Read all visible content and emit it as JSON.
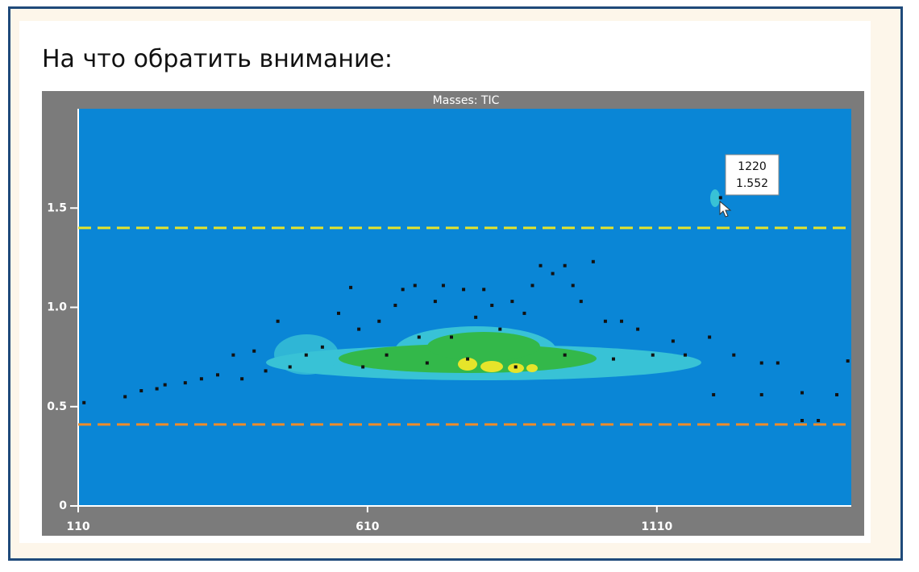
{
  "heading": "На что обратить внимание:",
  "chart_data": {
    "type": "scatter",
    "title": "Masses: TIC",
    "xlim": [
      110,
      1446
    ],
    "ylim": [
      0,
      2
    ],
    "xticks": [
      110,
      610,
      1110
    ],
    "yticks": [
      0,
      0.5,
      {
        "value": 1,
        "label": "1.0"
      },
      1.5
    ],
    "reference_lines": [
      {
        "value": 1.4,
        "color": "#e4e42c"
      },
      {
        "value": 0.41,
        "color": "#ee8c2a"
      }
    ],
    "series": [
      {
        "color": "#111111",
        "x": [
          120,
          191,
          219,
          246,
          260,
          295,
          323,
          351,
          378,
          393,
          414,
          434,
          455,
          476,
          504,
          532,
          560,
          581,
          595,
          630,
          658,
          671,
          692,
          699,
          727,
          741,
          755,
          776,
          797,
          811,
          825,
          839,
          860,
          881,
          895,
          909,
          930,
          951,
          965,
          979,
          1000,
          1021,
          1049,
          1077,
          1103,
          1138,
          1159,
          1201,
          1208,
          1243,
          1291,
          1291,
          1319,
          1361,
          1361,
          1389,
          1421,
          1440,
          643,
          713,
          783,
          866,
          951,
          1035,
          602,
          1220
        ],
        "y": [
          0.52,
          0.55,
          0.58,
          0.59,
          0.61,
          0.62,
          0.64,
          0.66,
          0.76,
          0.64,
          0.78,
          0.68,
          0.93,
          0.7,
          0.76,
          0.8,
          0.97,
          1.1,
          0.89,
          0.93,
          1.01,
          1.09,
          1.11,
          0.85,
          1.03,
          1.11,
          0.85,
          1.09,
          0.95,
          1.09,
          1.01,
          0.89,
          1.03,
          0.97,
          1.11,
          1.21,
          1.17,
          1.21,
          1.11,
          1.03,
          1.23,
          0.93,
          0.93,
          0.89,
          0.76,
          0.83,
          0.76,
          0.85,
          0.56,
          0.76,
          0.72,
          0.56,
          0.72,
          0.57,
          0.43,
          0.43,
          0.56,
          0.73,
          0.76,
          0.72,
          0.74,
          0.7,
          0.76,
          0.74,
          0.7,
          1.552
        ]
      }
    ],
    "tooltip": {
      "x": 1220,
      "y": 1.552
    }
  }
}
